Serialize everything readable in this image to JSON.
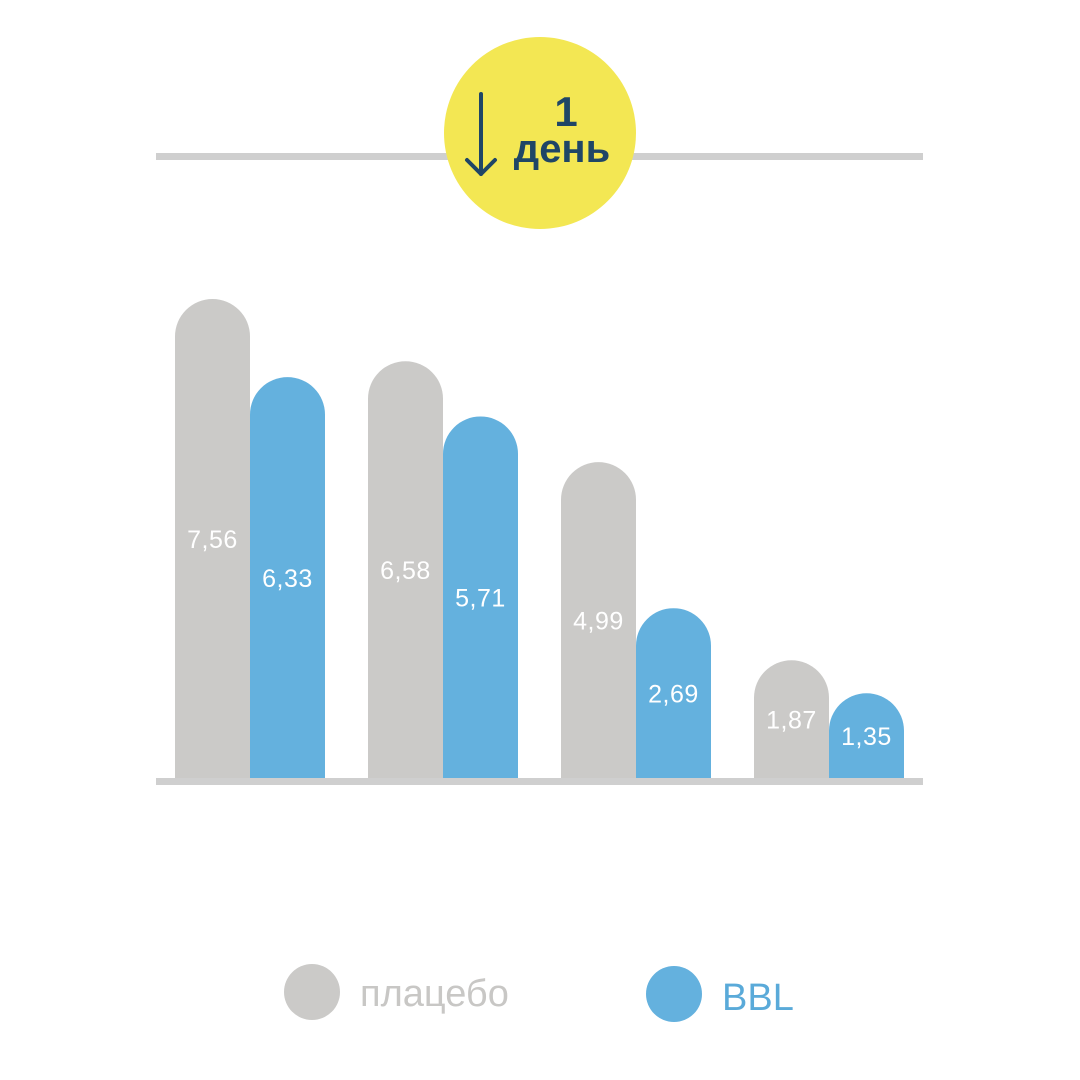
{
  "badge": {
    "line1": "1",
    "line2": "день",
    "arrow_icon": "arrow-down-icon"
  },
  "legend": [
    {
      "label": "плацебо",
      "color": "#cbcac8",
      "text_color": "#c8c7c5"
    },
    {
      "label": "BBL",
      "color": "#64b1de",
      "text_color": "#5aaad9"
    }
  ],
  "colors": {
    "placebo": "#cbcac8",
    "bbl": "#64b1de",
    "badge": "#f3e753",
    "badge_text": "#1f4666",
    "rule": "#cfcfcf",
    "value_label": "#ffffff"
  },
  "chart_data": {
    "type": "bar",
    "categories": [
      "",
      "",
      "",
      ""
    ],
    "series": [
      {
        "name": "плацебо",
        "values": [
          7.56,
          6.58,
          4.99,
          1.87
        ],
        "labels": [
          "7,56",
          "6,58",
          "4,99",
          "1,87"
        ]
      },
      {
        "name": "BBL",
        "values": [
          6.33,
          5.71,
          2.69,
          1.35
        ],
        "labels": [
          "6,33",
          "5,71",
          "2,69",
          "1,35"
        ]
      }
    ],
    "title": "",
    "xlabel": "",
    "ylabel": "",
    "ylim": [
      0,
      7.56
    ],
    "grid": false,
    "legend_position": "bottom-center"
  }
}
